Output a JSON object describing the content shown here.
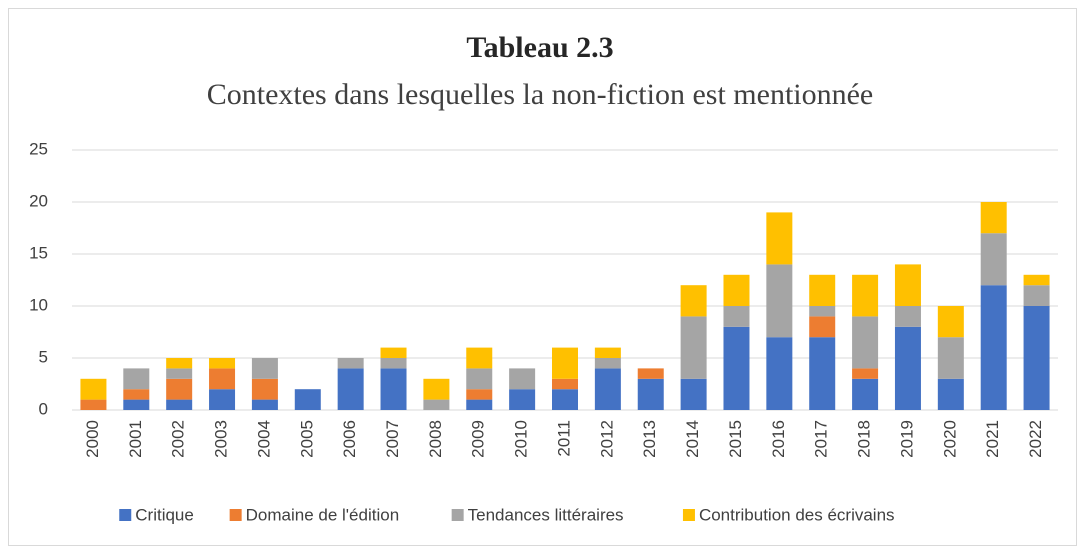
{
  "chart_data": {
    "type": "stacked_bar",
    "title": "Tableau 2.3",
    "subtitle": "Contextes dans lesquelles la non-fiction est mentionnée",
    "categories": [
      "2000",
      "2001",
      "2002",
      "2003",
      "2004",
      "2005",
      "2006",
      "2007",
      "2008",
      "2009",
      "2010",
      "2011",
      "2012",
      "2013",
      "2014",
      "2015",
      "2016",
      "2017",
      "2018",
      "2019",
      "2020",
      "2021",
      "2022"
    ],
    "series": [
      {
        "name": "Critique",
        "color": "#4472c4",
        "values": [
          0,
          1,
          1,
          2,
          1,
          2,
          4,
          4,
          0,
          1,
          2,
          2,
          4,
          3,
          3,
          8,
          7,
          7,
          3,
          8,
          3,
          12,
          10
        ]
      },
      {
        "name": "Domaine de l'édition",
        "color": "#ed7d31",
        "values": [
          1,
          1,
          2,
          2,
          2,
          0,
          0,
          0,
          0,
          1,
          0,
          1,
          0,
          1,
          0,
          0,
          0,
          2,
          1,
          0,
          0,
          0,
          0
        ]
      },
      {
        "name": "Tendances littéraires",
        "color": "#a5a5a5",
        "values": [
          0,
          2,
          1,
          0,
          2,
          0,
          1,
          1,
          1,
          2,
          2,
          0,
          1,
          0,
          6,
          2,
          7,
          1,
          5,
          2,
          4,
          5,
          2
        ]
      },
      {
        "name": "Contribution des écrivains",
        "color": "#ffc000",
        "values": [
          2,
          0,
          1,
          1,
          0,
          0,
          0,
          1,
          2,
          2,
          0,
          3,
          1,
          0,
          3,
          3,
          5,
          3,
          4,
          4,
          3,
          3,
          1
        ]
      }
    ],
    "ylim": [
      0,
      25
    ],
    "yticks": [
      0,
      5,
      10,
      15,
      20,
      25
    ],
    "grid": true,
    "legend": "bottom"
  }
}
